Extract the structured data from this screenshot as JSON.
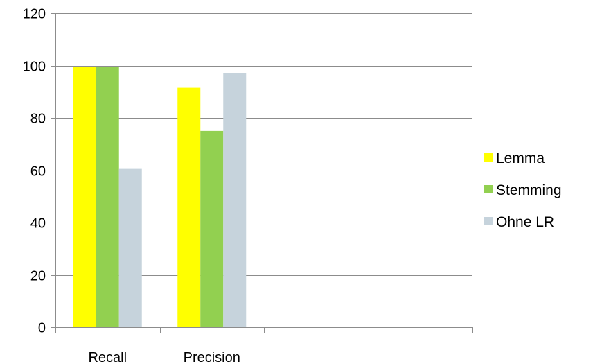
{
  "chart_data": {
    "type": "bar",
    "categories": [
      "Recall",
      "Precision",
      "",
      ""
    ],
    "series": [
      {
        "name": "Lemma",
        "color": "#ffff00",
        "values": [
          99.5,
          91.5,
          null,
          null
        ]
      },
      {
        "name": "Stemming",
        "color": "#92d050",
        "values": [
          99.5,
          75,
          null,
          null
        ]
      },
      {
        "name": "Ohne LR",
        "color": "#c6d3dc",
        "values": [
          60.5,
          97,
          null,
          null
        ]
      }
    ],
    "yticks": [
      "0",
      "20",
      "40",
      "60",
      "80",
      "100",
      "120"
    ],
    "ylim": [
      0,
      120
    ],
    "grid": true,
    "legend_position": "right"
  }
}
